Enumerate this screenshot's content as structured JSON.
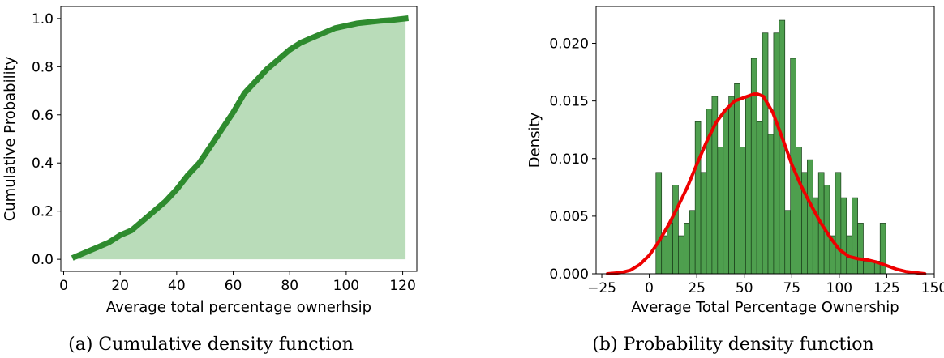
{
  "chart_data": [
    {
      "type": "area",
      "caption": "(a) Cumulative density function",
      "xlabel": "Average total percentage ownerhsip",
      "ylabel": "Cumulative Probability",
      "xlim": [
        -1,
        125
      ],
      "ylim": [
        -0.05,
        1.05
      ],
      "xticks": [
        0,
        20,
        40,
        60,
        80,
        100,
        120
      ],
      "yticks": [
        0.0,
        0.2,
        0.4,
        0.6,
        0.8,
        1.0
      ],
      "grid": false,
      "colors": {
        "line": "#2e8b2e",
        "fill": "#b9dcb9"
      },
      "series": [
        {
          "x": [
            4,
            8,
            12,
            16,
            20,
            24,
            28,
            32,
            36,
            40,
            44,
            48,
            52,
            56,
            60,
            64,
            68,
            72,
            76,
            80,
            84,
            88,
            92,
            96,
            100,
            104,
            108,
            112,
            116,
            121
          ],
          "y": [
            0.01,
            0.03,
            0.05,
            0.07,
            0.1,
            0.12,
            0.16,
            0.2,
            0.24,
            0.29,
            0.35,
            0.4,
            0.47,
            0.54,
            0.61,
            0.69,
            0.74,
            0.79,
            0.83,
            0.87,
            0.9,
            0.92,
            0.94,
            0.96,
            0.97,
            0.98,
            0.985,
            0.99,
            0.993,
            1.0
          ]
        }
      ]
    },
    {
      "type": "bar",
      "caption": "(b) Probability density function",
      "xlabel": "Average Total Percentage Ownership",
      "ylabel": "Density",
      "xlim": [
        -28,
        150
      ],
      "ylim": [
        0,
        0.0232
      ],
      "xticks": [
        -25,
        0,
        25,
        50,
        75,
        100,
        125,
        150
      ],
      "yticks": [
        0.0,
        0.005,
        0.01,
        0.015,
        0.02
      ],
      "ytick_labels": [
        "0.000",
        "0.005",
        "0.010",
        "0.015",
        "0.020"
      ],
      "grid": false,
      "colors": {
        "bars": "#4e9f4e",
        "bar_edge": "#1a3d1a",
        "kde": "#ee0000"
      },
      "bin_start": 3.5,
      "bin_width": 2.95,
      "values": [
        0.0088,
        0.0033,
        0.0044,
        0.0077,
        0.0033,
        0.0044,
        0.0055,
        0.0132,
        0.0088,
        0.0143,
        0.0154,
        0.011,
        0.0143,
        0.0154,
        0.0165,
        0.011,
        0.0154,
        0.0187,
        0.0132,
        0.0209,
        0.0121,
        0.0209,
        0.022,
        0.0055,
        0.0187,
        0.011,
        0.0088,
        0.0099,
        0.0066,
        0.0088,
        0.0077,
        0.0033,
        0.0088,
        0.0066,
        0.0033,
        0.0066,
        0.0044,
        0.0011,
        0.0011,
        0.0011,
        0.0044
      ],
      "kde": {
        "x": [
          -22,
          -15,
          -10,
          -5,
          0,
          5,
          10,
          15,
          20,
          25,
          30,
          35,
          40,
          45,
          50,
          55,
          57,
          60,
          65,
          70,
          75,
          80,
          85,
          90,
          95,
          100,
          105,
          110,
          115,
          120,
          125,
          130,
          135,
          140,
          145
        ],
        "y": [
          0.0,
          0.0001,
          0.0003,
          0.0008,
          0.0016,
          0.0028,
          0.0042,
          0.0058,
          0.0075,
          0.0095,
          0.0114,
          0.0131,
          0.0142,
          0.015,
          0.0153,
          0.0156,
          0.0156,
          0.0154,
          0.014,
          0.0118,
          0.0095,
          0.0076,
          0.006,
          0.0045,
          0.0032,
          0.0021,
          0.0015,
          0.0013,
          0.0012,
          0.001,
          0.0007,
          0.0004,
          0.0002,
          0.0001,
          0.0
        ]
      }
    }
  ]
}
